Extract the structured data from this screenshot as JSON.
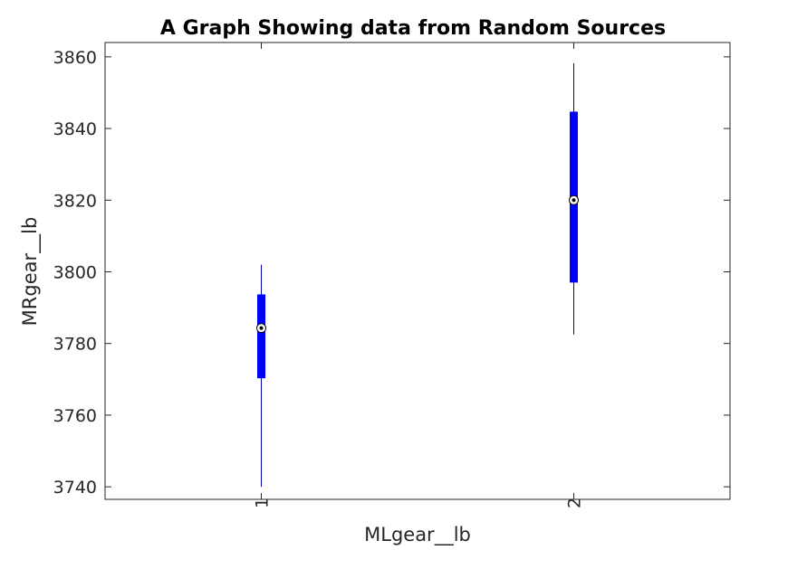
{
  "chart_data": {
    "type": "boxplot",
    "title": "A Graph Showing data from Random Sources",
    "xlabel": "MLgear__lb",
    "ylabel": "MRgear__lb",
    "categories": [
      "1",
      "2"
    ],
    "ylim": [
      3736.5,
      3864
    ],
    "yticks": [
      "3740",
      "3760",
      "3780",
      "3800",
      "3820",
      "3840",
      "3860"
    ],
    "x_tick_rotation": -90,
    "grid": false,
    "box_color": "#0000ff",
    "whisker_color": "#0000aa",
    "boxes": [
      {
        "category": "1",
        "whisker_low": 3740,
        "q1": 3770.3,
        "median": 3784.3,
        "q3": 3793.7,
        "whisker_high": 3802
      },
      {
        "category": "2",
        "whisker_low": 3782.5,
        "q1": 3797,
        "median": 3820,
        "q3": 3844.7,
        "whisker_high": 3858.2
      }
    ]
  }
}
